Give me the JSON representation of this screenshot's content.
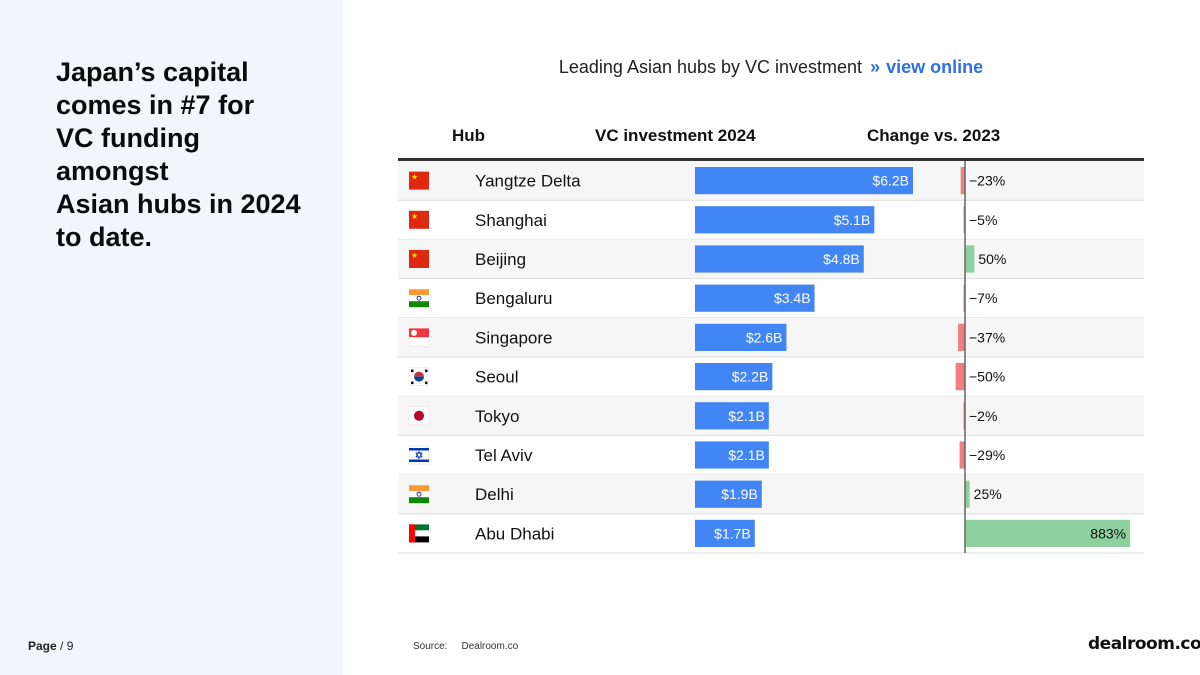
{
  "headline": "Japan’s capital\ncomes in #7 for\nVC funding\namongst\nAsian hubs in 2024\nto date.",
  "page": {
    "label": "Page",
    "sep": "/",
    "number": "9"
  },
  "chart_title": {
    "text": "Leading Asian hubs by VC investment",
    "separator": "»",
    "link_text": "view online"
  },
  "source": {
    "label": "Source:",
    "value": "Dealroom.co"
  },
  "logo": "dealroom.co",
  "colors": {
    "investment_bar": "#4285f4",
    "change_negative": "#f08080",
    "change_positive": "#8fd19e"
  },
  "chart_data": {
    "type": "table",
    "columns": [
      "Hub",
      "VC investment 2024",
      "Change vs. 2023"
    ],
    "rows": [
      {
        "hub": "Yangtze Delta",
        "flag": "china-flag-icon",
        "investment": 6.2,
        "investment_label": "$6.2B",
        "change": -23,
        "change_label": "−23%"
      },
      {
        "hub": "Shanghai",
        "flag": "china-flag-icon",
        "investment": 5.1,
        "investment_label": "$5.1B",
        "change": -5,
        "change_label": "−5%"
      },
      {
        "hub": "Beijing",
        "flag": "china-flag-icon",
        "investment": 4.8,
        "investment_label": "$4.8B",
        "change": 50,
        "change_label": "50%"
      },
      {
        "hub": "Bengaluru",
        "flag": "india-flag-icon",
        "investment": 3.4,
        "investment_label": "$3.4B",
        "change": -7,
        "change_label": "−7%"
      },
      {
        "hub": "Singapore",
        "flag": "singapore-flag-icon",
        "investment": 2.6,
        "investment_label": "$2.6B",
        "change": -37,
        "change_label": "−37%"
      },
      {
        "hub": "Seoul",
        "flag": "south-korea-flag-icon",
        "investment": 2.2,
        "investment_label": "$2.2B",
        "change": -50,
        "change_label": "−50%"
      },
      {
        "hub": "Tokyo",
        "flag": "japan-flag-icon",
        "investment": 2.1,
        "investment_label": "$2.1B",
        "change": -2,
        "change_label": "−2%"
      },
      {
        "hub": "Tel Aviv",
        "flag": "israel-flag-icon",
        "investment": 2.1,
        "investment_label": "$2.1B",
        "change": -29,
        "change_label": "−29%"
      },
      {
        "hub": "Delhi",
        "flag": "india-flag-icon",
        "investment": 1.9,
        "investment_label": "$1.9B",
        "change": 25,
        "change_label": "25%"
      },
      {
        "hub": "Abu Dhabi",
        "flag": "uae-flag-icon",
        "investment": 1.7,
        "investment_label": "$1.7B",
        "change": 883,
        "change_label": "883%"
      }
    ]
  }
}
